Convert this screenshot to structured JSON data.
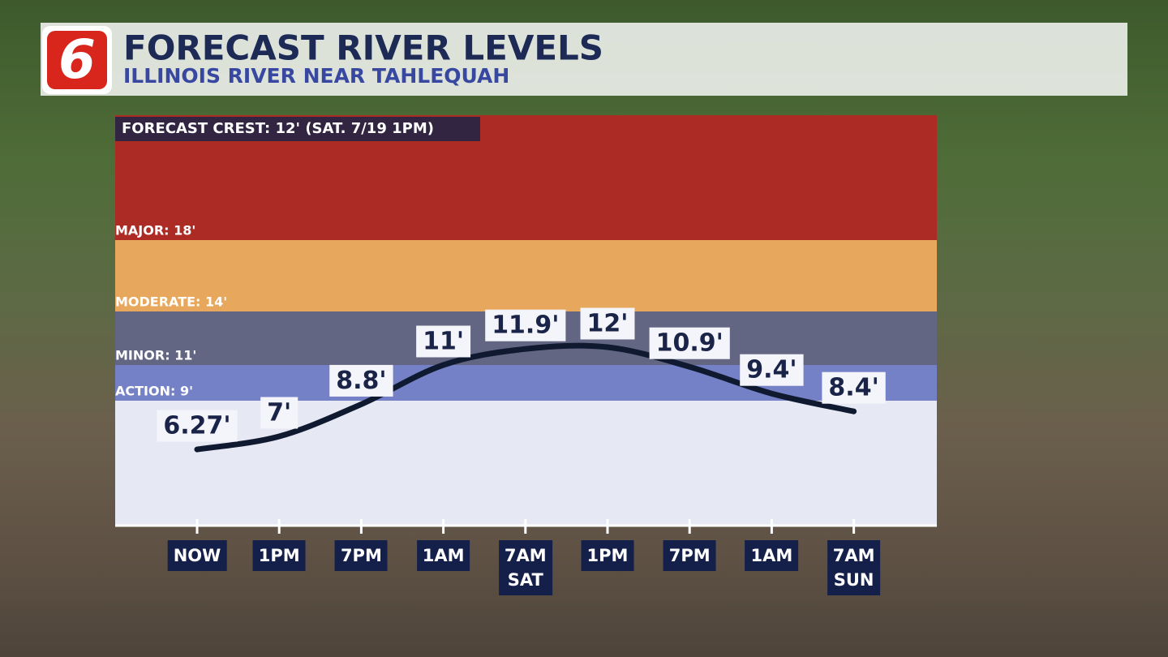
{
  "logo": "6",
  "chart_data": {
    "type": "line",
    "title": "FORECAST RIVER LEVELS",
    "subtitle": "ILLINOIS RIVER NEAR TAHLEQUAH",
    "annotation": "FORECAST CREST: 12' (SAT. 7/19 1PM)",
    "categories": [
      "NOW",
      "1PM",
      "7PM",
      "1AM",
      "7AM SAT",
      "1PM",
      "7PM",
      "1AM",
      "7AM SUN"
    ],
    "values": [
      6.27,
      7,
      8.8,
      11,
      11.9,
      12,
      10.9,
      9.4,
      8.4
    ],
    "value_labels": [
      "6.27'",
      "7'",
      "8.8'",
      "11'",
      "11.9'",
      "12'",
      "10.9'",
      "9.4'",
      "8.4'"
    ],
    "color": "#0f1a30",
    "ylim": [
      2,
      25
    ],
    "base_color": "#e6e8f3",
    "thresholds": [
      {
        "value": 9,
        "label": "ACTION: 9'",
        "color": "#6b78c2"
      },
      {
        "value": 11,
        "label": "MINOR: 11'",
        "color": "#585b78"
      },
      {
        "value": 14,
        "label": "MODERATE: 14'",
        "color": "#e6a150"
      },
      {
        "value": 18,
        "label": "MAJOR: 18'",
        "color": "#a81c14"
      }
    ]
  }
}
